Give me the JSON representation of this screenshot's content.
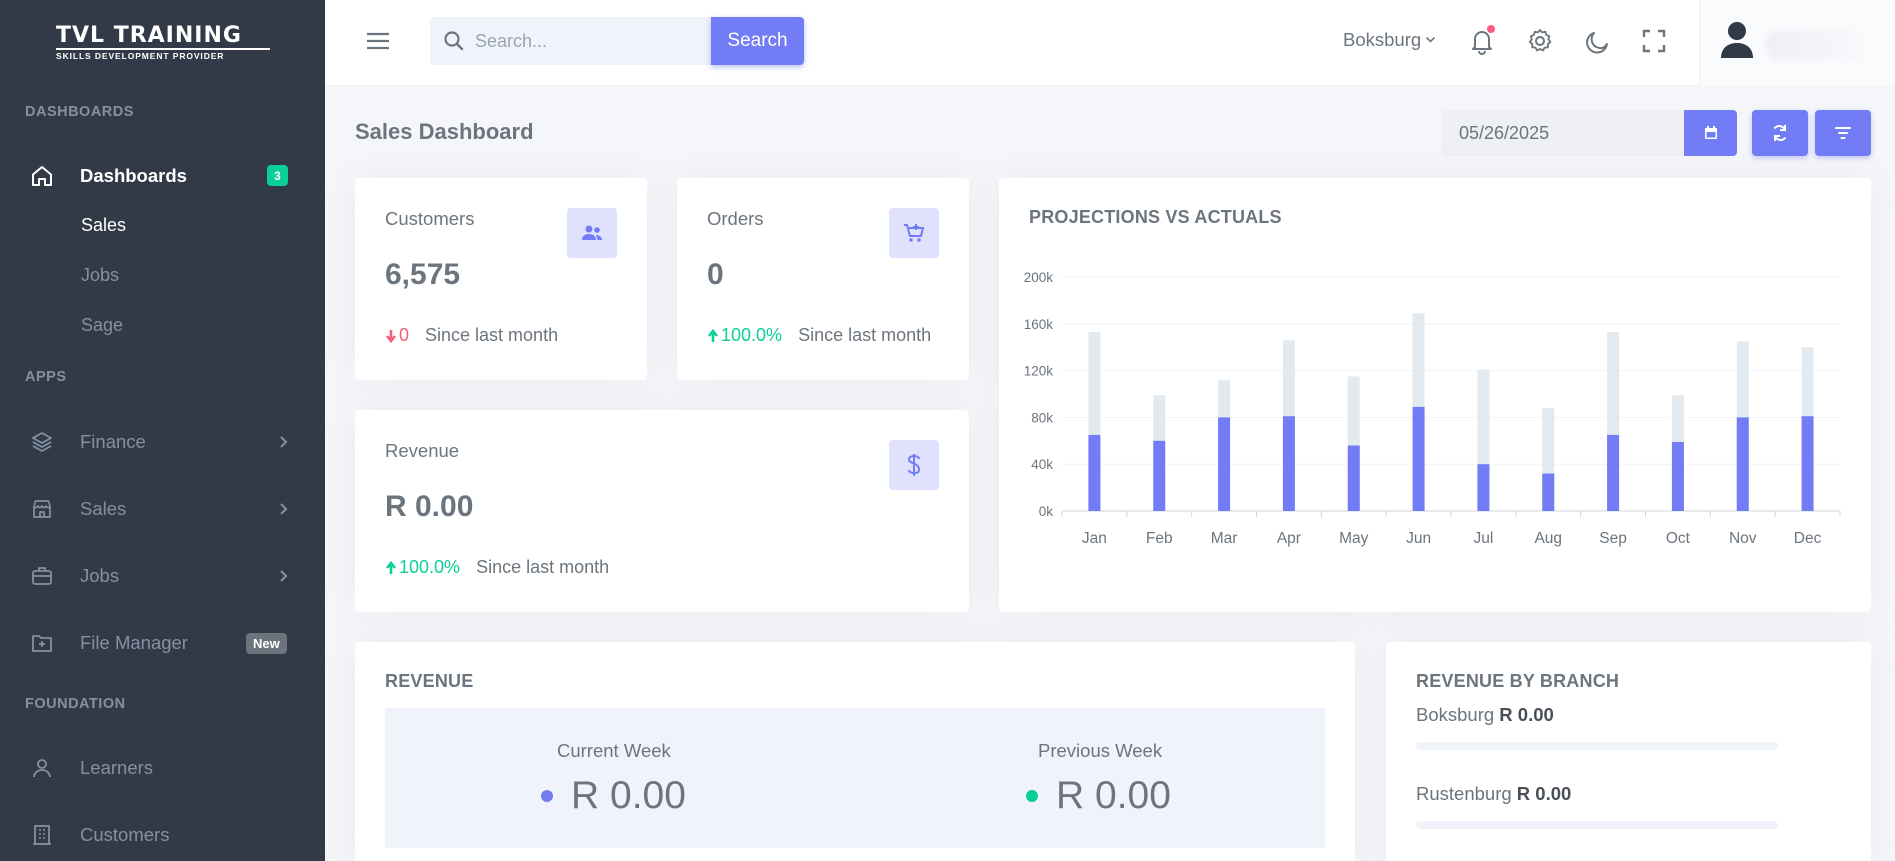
{
  "brand": {
    "line1": "TVL TRAINING",
    "line2": "SKILLS DEVELOPMENT PROVIDER"
  },
  "sidebar": {
    "sections": [
      {
        "title": "DASHBOARDS"
      },
      {
        "title": "APPS"
      },
      {
        "title": "FOUNDATION"
      }
    ],
    "dashboards": {
      "label": "Dashboards",
      "badge": "3",
      "icon": "home-icon"
    },
    "dashboard_subitems": [
      "Sales",
      "Jobs",
      "Sage"
    ],
    "apps": [
      {
        "label": "Finance",
        "icon": "layers-icon"
      },
      {
        "label": "Sales",
        "icon": "store-icon"
      },
      {
        "label": "Jobs",
        "icon": "briefcase-icon"
      },
      {
        "label": "File Manager",
        "icon": "folder-plus-icon",
        "badge": "New"
      }
    ],
    "foundation": [
      {
        "label": "Learners",
        "icon": "user-icon"
      },
      {
        "label": "Customers",
        "icon": "building-icon"
      }
    ]
  },
  "topbar": {
    "search_placeholder": "Search...",
    "search_button": "Search",
    "branch": "Boksburg"
  },
  "page": {
    "title": "Sales Dashboard",
    "date": "05/26/2025"
  },
  "stats": {
    "customers": {
      "label": "Customers",
      "value": "6,575",
      "change": "0",
      "since": "Since last month"
    },
    "orders": {
      "label": "Orders",
      "value": "0",
      "change": "100.0%",
      "since": "Since last month"
    },
    "revenue": {
      "label": "Revenue",
      "value": "R 0.00",
      "change": "100.0%",
      "since": "Since last month"
    }
  },
  "chart_data": {
    "type": "bar",
    "title": "PROJECTIONS VS ACTUALS",
    "categories": [
      "Jan",
      "Feb",
      "Mar",
      "Apr",
      "May",
      "Jun",
      "Jul",
      "Aug",
      "Sep",
      "Oct",
      "Nov",
      "Dec"
    ],
    "series": [
      {
        "values": [
          153000,
          99000,
          112000,
          146000,
          115000,
          169000,
          121000,
          88000,
          153000,
          99000,
          145000,
          140000
        ],
        "color": "#e3eaef"
      },
      {
        "values": [
          65000,
          60000,
          80000,
          81000,
          56000,
          89000,
          40000,
          32000,
          65000,
          59000,
          80000,
          81000
        ],
        "color": "#727cf5"
      }
    ],
    "ylim": [
      0,
      200000
    ],
    "yticks": [
      "0k",
      "40k",
      "80k",
      "120k",
      "160k",
      "200k"
    ],
    "grid": true
  },
  "revenue_card": {
    "title": "REVENUE",
    "current_label": "Current Week",
    "current_value": "R 0.00",
    "previous_label": "Previous Week",
    "previous_value": "R 0.00",
    "current_color": "#727cf5",
    "previous_color": "#0acf97"
  },
  "branch_card": {
    "title": "REVENUE BY BRANCH",
    "branches": [
      {
        "name": "Boksburg",
        "value": "R 0.00"
      },
      {
        "name": "Rustenburg",
        "value": "R 0.00"
      }
    ]
  }
}
